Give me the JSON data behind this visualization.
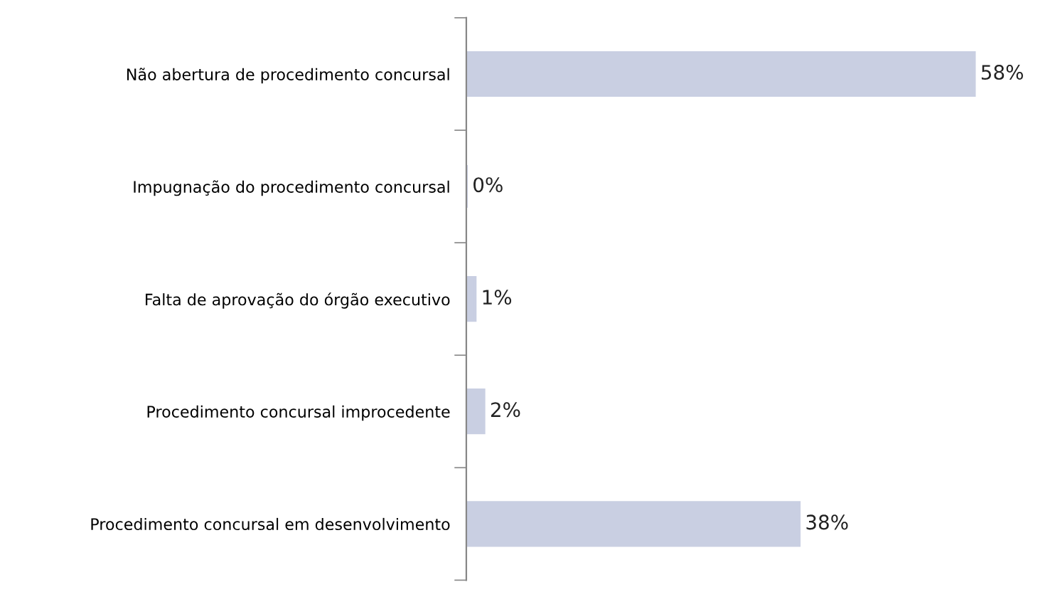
{
  "chart_data": {
    "type": "bar",
    "orientation": "horizontal",
    "categories": [
      "Não abertura de procedimento concursal",
      "Impugnação do procedimento concursal",
      "Falta de aprovação do órgão executivo",
      "Procedimento concursal improcedente",
      "Procedimento concursal em desenvolvimento"
    ],
    "values": [
      58,
      0,
      1,
      2,
      38
    ],
    "value_labels": [
      "58%",
      "0%",
      "1%",
      "2%",
      "38%"
    ],
    "color": "#c9cfe2",
    "grid": false,
    "legend": false
  }
}
